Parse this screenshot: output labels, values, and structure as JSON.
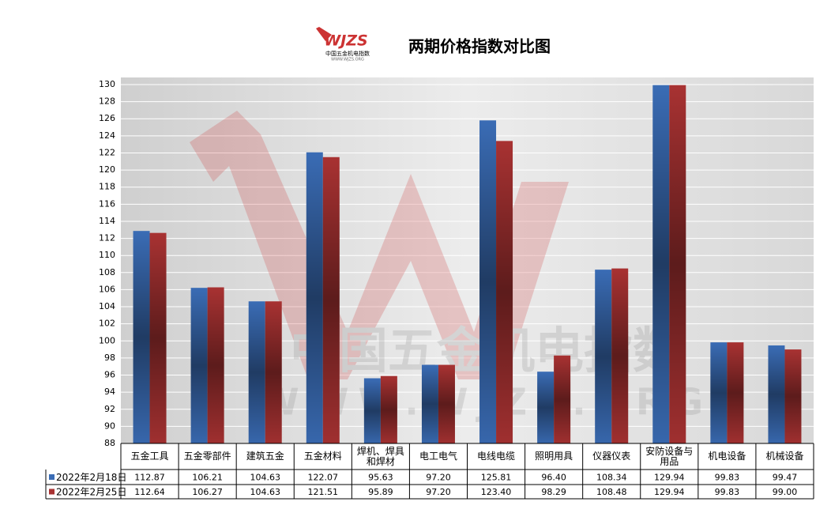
{
  "logo": {
    "main": "WJZS",
    "sub": "中国五金机电指数",
    "url": "WWW.WJZS.ORG"
  },
  "chart_data": {
    "type": "bar",
    "title": "两期价格指数对比图",
    "categories": [
      "五金工具",
      "五金零部件",
      "建筑五金",
      "五金材料",
      "焊机、焊具和焊材",
      "电工电气",
      "电线电缆",
      "照明用具",
      "仪器仪表",
      "安防设备与用品",
      "机电设备",
      "机械设备"
    ],
    "series": [
      {
        "name": "2022年2月18日",
        "color": "#3a6cb5",
        "values": [
          112.87,
          106.21,
          104.63,
          122.07,
          95.63,
          97.2,
          125.81,
          96.4,
          108.34,
          129.94,
          99.83,
          99.47
        ],
        "value_labels": [
          "112.87",
          "106.21",
          "104.63",
          "122.07",
          "95.63",
          "97.20",
          "125.81",
          "96.40",
          "108.34",
          "129.94",
          "99.83",
          "99.47"
        ]
      },
      {
        "name": "2022年2月25日",
        "color": "#a83232",
        "values": [
          112.64,
          106.27,
          104.63,
          121.51,
          95.89,
          97.2,
          123.4,
          98.29,
          108.48,
          129.94,
          99.83,
          99.0
        ],
        "value_labels": [
          "112.64",
          "106.27",
          "104.63",
          "121.51",
          "95.89",
          "97.20",
          "123.40",
          "98.29",
          "108.48",
          "129.94",
          "99.83",
          "99.00"
        ]
      }
    ],
    "ylim": [
      88,
      130
    ],
    "yticks": [
      88,
      90,
      92,
      94,
      96,
      98,
      100,
      102,
      104,
      106,
      108,
      110,
      112,
      114,
      116,
      118,
      120,
      122,
      124,
      126,
      128,
      130
    ],
    "grid": true
  }
}
